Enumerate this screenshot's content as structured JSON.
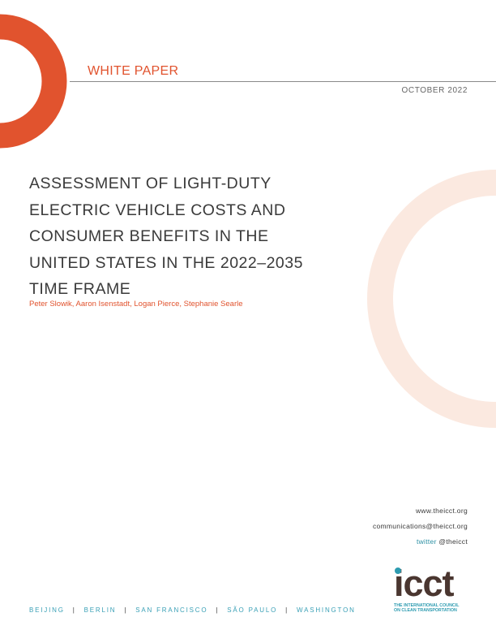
{
  "document": {
    "type_label": "WHITE PAPER",
    "date": "OCTOBER 2022",
    "title_lines": [
      "ASSESSMENT OF LIGHT-DUTY",
      "ELECTRIC VEHICLE COSTS AND",
      "CONSUMER BENEFITS IN THE",
      "UNITED STATES IN THE 2022–2035",
      "TIME FRAME"
    ],
    "authors": "Peter Slowik, Aaron Isenstadt, Logan Pierce, Stephanie Searle"
  },
  "contact": {
    "website": "www.theicct.org",
    "email": "communications@theicct.org",
    "twitter_label": "twitter",
    "twitter_handle": "@theicct"
  },
  "offices": [
    "BEIJING",
    "BERLIN",
    "SAN FRANCISCO",
    "SÃO PAULO",
    "WASHINGTON"
  ],
  "logo": {
    "wordmark": "icct",
    "tagline_1": "THE INTERNATIONAL COUNCIL",
    "tagline_2": "ON CLEAN TRANSPORTATION"
  },
  "colors": {
    "accent": "#e1532e",
    "accent_light": "#fbe9e0",
    "teal": "#2d9bb0",
    "logo_brown": "#4a3630"
  }
}
